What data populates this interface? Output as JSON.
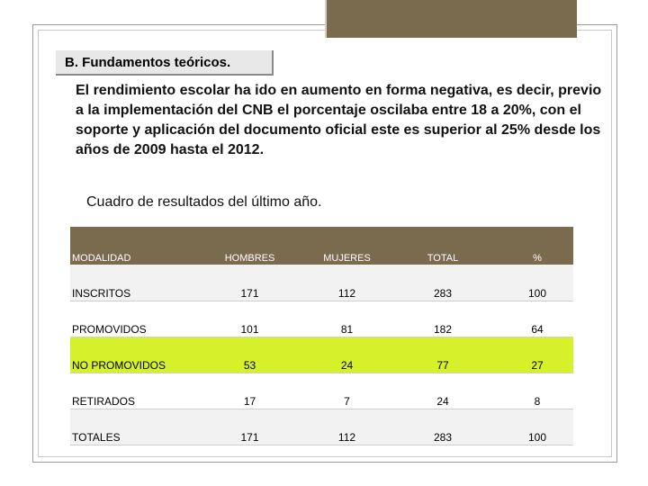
{
  "colors": {
    "accent": "#7a6a4e",
    "highlight_row": "#d6f02a",
    "heading_bg": "#e8e8e8"
  },
  "heading": "B. Fundamentos teóricos.",
  "paragraph": "El rendimiento escolar ha ido en aumento en forma negativa, es decir, previo a la implementación del CNB el porcentaje oscilaba entre 18 a 20%, con el soporte y aplicación del documento oficial este es superior al 25% desde los años de 2009 hasta el 2012.",
  "caption": "Cuadro de resultados del último año.",
  "table": {
    "headers": [
      "MODALIDAD",
      "HOMBRES",
      "MUJERES",
      "TOTAL",
      "%"
    ],
    "rows": [
      [
        "INSCRITOS",
        "171",
        "112",
        "283",
        "100"
      ],
      [
        "PROMOVIDOS",
        "101",
        "81",
        "182",
        "64"
      ],
      [
        "NO PROMOVIDOS",
        "53",
        "24",
        "77",
        "27"
      ],
      [
        "RETIRADOS",
        "17",
        "7",
        "24",
        "8"
      ],
      [
        "TOTALES",
        "171",
        "112",
        "283",
        "100"
      ]
    ]
  }
}
